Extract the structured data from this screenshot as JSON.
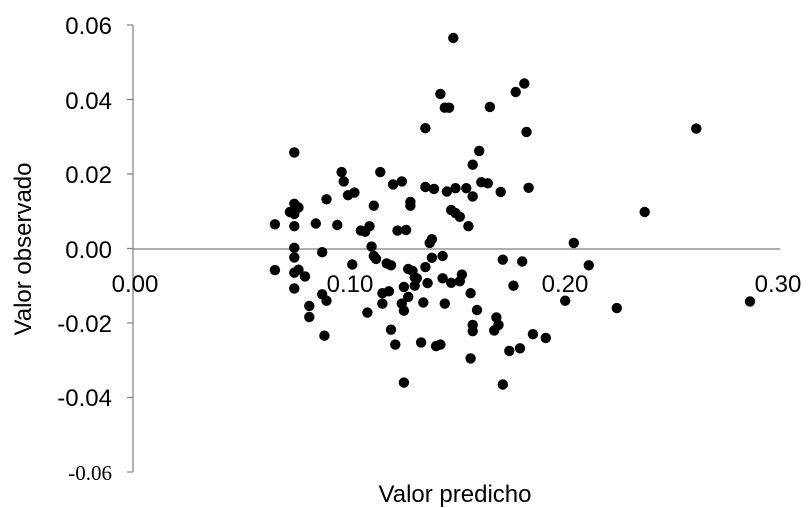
{
  "chart_data": {
    "type": "scatter",
    "xlabel": "Valor predicho",
    "ylabel": "Valor observado",
    "xlim": [
      0.0,
      0.3
    ],
    "ylim": [
      -0.06,
      0.06
    ],
    "x_ticks": [
      "0.00",
      "0.10",
      "0.20",
      "0.30"
    ],
    "y_ticks": [
      "0.06",
      "0.04",
      "0.02",
      "0.00",
      "-0.02",
      "-0.04",
      "-0.06"
    ],
    "grid": false,
    "legend": "none",
    "marker_color": "#000000",
    "points": [
      [
        0.066,
        0.0065
      ],
      [
        0.066,
        -0.0058
      ],
      [
        0.073,
        0.0098
      ],
      [
        0.075,
        0.0258
      ],
      [
        0.075,
        0.012
      ],
      [
        0.075,
        0.0093
      ],
      [
        0.075,
        0.006
      ],
      [
        0.075,
        0.0002
      ],
      [
        0.075,
        -0.0024
      ],
      [
        0.075,
        -0.0065
      ],
      [
        0.075,
        -0.0107
      ],
      [
        0.077,
        0.011
      ],
      [
        0.077,
        -0.0057
      ],
      [
        0.08,
        -0.0075
      ],
      [
        0.082,
        -0.0154
      ],
      [
        0.082,
        -0.0184
      ],
      [
        0.085,
        0.0067
      ],
      [
        0.088,
        -0.001
      ],
      [
        0.088,
        -0.0123
      ],
      [
        0.089,
        -0.0234
      ],
      [
        0.09,
        0.0132
      ],
      [
        0.09,
        -0.014
      ],
      [
        0.095,
        0.0063
      ],
      [
        0.097,
        0.0205
      ],
      [
        0.098,
        0.018
      ],
      [
        0.1,
        0.0143
      ],
      [
        0.102,
        -0.0043
      ],
      [
        0.103,
        0.015
      ],
      [
        0.106,
        0.0048
      ],
      [
        0.108,
        0.0045
      ],
      [
        0.109,
        -0.0172
      ],
      [
        0.11,
        0.006
      ],
      [
        0.111,
        0.0005
      ],
      [
        0.112,
        0.0115
      ],
      [
        0.112,
        -0.002
      ],
      [
        0.113,
        -0.0028
      ],
      [
        0.115,
        0.0205
      ],
      [
        0.116,
        -0.0148
      ],
      [
        0.116,
        -0.012
      ],
      [
        0.118,
        -0.004
      ],
      [
        0.119,
        -0.0115
      ],
      [
        0.12,
        -0.0045
      ],
      [
        0.12,
        -0.0218
      ],
      [
        0.121,
        0.0172
      ],
      [
        0.122,
        -0.0258
      ],
      [
        0.123,
        0.0048
      ],
      [
        0.125,
        0.018
      ],
      [
        0.125,
        -0.0148
      ],
      [
        0.126,
        -0.0167
      ],
      [
        0.126,
        -0.036
      ],
      [
        0.126,
        -0.0103
      ],
      [
        0.127,
        0.005
      ],
      [
        0.128,
        -0.013
      ],
      [
        0.128,
        -0.0055
      ],
      [
        0.129,
        0.0125
      ],
      [
        0.129,
        0.0115
      ],
      [
        0.13,
        -0.006
      ],
      [
        0.131,
        -0.0077
      ],
      [
        0.131,
        -0.01
      ],
      [
        0.132,
        -0.008
      ],
      [
        0.134,
        -0.0252
      ],
      [
        0.135,
        -0.0145
      ],
      [
        0.136,
        0.0165
      ],
      [
        0.136,
        0.0323
      ],
      [
        0.136,
        -0.005
      ],
      [
        0.137,
        -0.0093
      ],
      [
        0.138,
        0.0015
      ],
      [
        0.139,
        0.0025
      ],
      [
        0.139,
        -0.0025
      ],
      [
        0.14,
        0.016
      ],
      [
        0.141,
        -0.0262
      ],
      [
        0.143,
        0.0415
      ],
      [
        0.143,
        -0.0258
      ],
      [
        0.144,
        -0.008
      ],
      [
        0.144,
        -0.002
      ],
      [
        0.145,
        0.0378
      ],
      [
        0.145,
        -0.0148
      ],
      [
        0.146,
        0.0153
      ],
      [
        0.147,
        0.0378
      ],
      [
        0.148,
        0.0103
      ],
      [
        0.148,
        -0.0092
      ],
      [
        0.149,
        0.0565
      ],
      [
        0.15,
        0.0162
      ],
      [
        0.15,
        0.0095
      ],
      [
        0.152,
        0.0085
      ],
      [
        0.152,
        -0.0088
      ],
      [
        0.153,
        -0.007
      ],
      [
        0.155,
        0.0162
      ],
      [
        0.156,
        0.006
      ],
      [
        0.157,
        -0.0295
      ],
      [
        0.157,
        -0.012
      ],
      [
        0.158,
        0.014
      ],
      [
        0.158,
        0.0225
      ],
      [
        0.158,
        -0.0205
      ],
      [
        0.158,
        -0.0222
      ],
      [
        0.16,
        -0.0165
      ],
      [
        0.161,
        0.0262
      ],
      [
        0.162,
        0.0178
      ],
      [
        0.165,
        0.0175
      ],
      [
        0.166,
        0.038
      ],
      [
        0.168,
        -0.022
      ],
      [
        0.169,
        -0.0185
      ],
      [
        0.17,
        -0.0205
      ],
      [
        0.171,
        0.0152
      ],
      [
        0.172,
        -0.003
      ],
      [
        0.172,
        -0.0365
      ],
      [
        0.175,
        -0.0275
      ],
      [
        0.177,
        -0.01
      ],
      [
        0.178,
        0.042
      ],
      [
        0.18,
        -0.0268
      ],
      [
        0.181,
        -0.0035
      ],
      [
        0.182,
        0.0443
      ],
      [
        0.183,
        0.0313
      ],
      [
        0.184,
        0.0163
      ],
      [
        0.186,
        -0.023
      ],
      [
        0.192,
        -0.024
      ],
      [
        0.201,
        -0.014
      ],
      [
        0.205,
        0.0015
      ],
      [
        0.212,
        -0.0045
      ],
      [
        0.225,
        -0.016
      ],
      [
        0.238,
        0.0098
      ],
      [
        0.262,
        0.0322
      ],
      [
        0.287,
        -0.0142
      ]
    ]
  }
}
